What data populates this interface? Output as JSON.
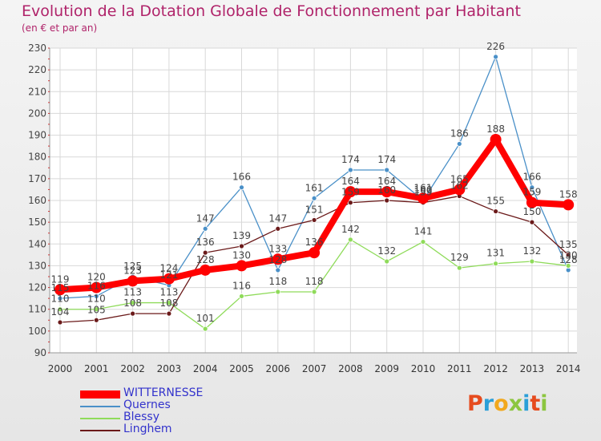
{
  "header": {
    "title": "Evolution de la Dotation Globale de Fonctionnement par Habitant",
    "subtitle": "(en € et par an)"
  },
  "logo": {
    "letters": [
      "P",
      "r",
      "o",
      "x",
      "i",
      "t",
      "i"
    ],
    "colors": [
      "#e64b1e",
      "#2a9fd8",
      "#f2a81d",
      "#8cc63f",
      "#2a9fd8",
      "#e64b1e",
      "#8cc63f"
    ]
  },
  "chart_data": {
    "type": "line",
    "title": "Evolution de la Dotation Globale de Fonctionnement par Habitant",
    "subtitle": "(en € et par an)",
    "xlabel": "",
    "ylabel": "",
    "ylim": [
      90,
      230
    ],
    "yticks": [
      90,
      100,
      110,
      120,
      130,
      140,
      150,
      160,
      170,
      180,
      190,
      200,
      210,
      220,
      230
    ],
    "categories": [
      "2000",
      "2001",
      "2002",
      "2003",
      "2004",
      "2005",
      "2006",
      "2007",
      "2008",
      "2009",
      "2010",
      "2011",
      "2012",
      "2013",
      "2014"
    ],
    "grid": true,
    "legend_position": "bottom-left",
    "series": [
      {
        "name": "WITTERNESSE",
        "color": "#ff0000",
        "values": [
          119,
          120,
          123,
          124,
          128,
          130,
          133,
          136,
          164,
          164,
          161,
          165,
          188,
          159,
          158
        ],
        "labels": [
          "119",
          "120",
          "123",
          "124",
          "128",
          "130",
          "133",
          "136",
          "164",
          "164",
          "161",
          "165",
          "188",
          "159",
          "158"
        ]
      },
      {
        "name": "Quernes",
        "color": "#4a90c8",
        "values": [
          115,
          116,
          125,
          121,
          147,
          166,
          128,
          161,
          174,
          174,
          160,
          186,
          226,
          166,
          128
        ],
        "labels": [
          "115",
          "116",
          "125",
          "121",
          "147",
          "166",
          "128",
          "161",
          "174",
          "174",
          "160",
          "186",
          "226",
          "166",
          "128"
        ]
      },
      {
        "name": "Blessy",
        "color": "#8fdb5a",
        "values": [
          110,
          110,
          113,
          113,
          101,
          116,
          118,
          118,
          142,
          132,
          141,
          129,
          131,
          132,
          130
        ],
        "labels": [
          "110",
          "110",
          "113",
          "113",
          "101",
          "116",
          "118",
          "118",
          "142",
          "132",
          "141",
          "129",
          "131",
          "132",
          "130"
        ]
      },
      {
        "name": "Linghem",
        "color": "#6b1a1a",
        "values": [
          104,
          105,
          108,
          108,
          136,
          139,
          147,
          151,
          159,
          160,
          159,
          162,
          155,
          150,
          135
        ],
        "labels": [
          "104",
          "105",
          "108",
          "108",
          "136",
          "139",
          "147",
          "151",
          "159",
          "160",
          "159",
          "162",
          "155",
          "150",
          "135"
        ]
      }
    ]
  }
}
